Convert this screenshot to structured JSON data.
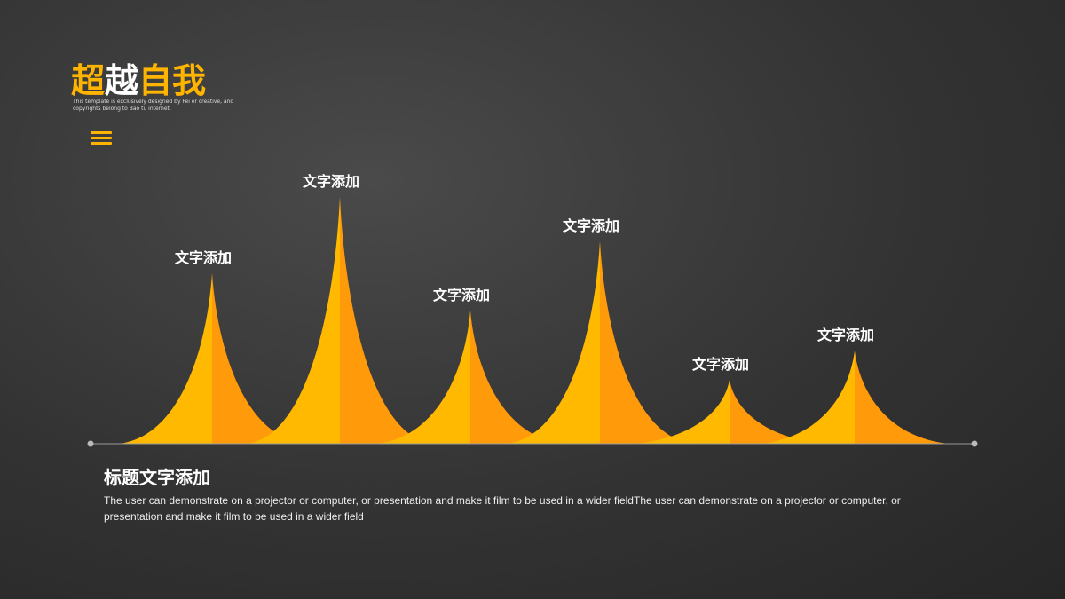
{
  "header": {
    "title": [
      "超",
      "越",
      "自我"
    ],
    "subtitle": "This template is exclusively designed by Fei er creative, and copyrights belong to Bao tu internet."
  },
  "chart_data": {
    "type": "peak",
    "categories": [
      "文字添加",
      "文字添加",
      "文字添加",
      "文字添加",
      "文字添加",
      "文字添加"
    ],
    "values": [
      192,
      278,
      150,
      228,
      72,
      105
    ],
    "colors": [
      "#ffb900",
      "#ff9a0a"
    ]
  },
  "body": {
    "heading": "标题文字添加",
    "text": "The user can demonstrate on a projector or computer, or presentation and make it film to be used in a wider fieldThe user can demonstrate on a projector or computer, or presentation and make it film to be used in a wider field"
  }
}
